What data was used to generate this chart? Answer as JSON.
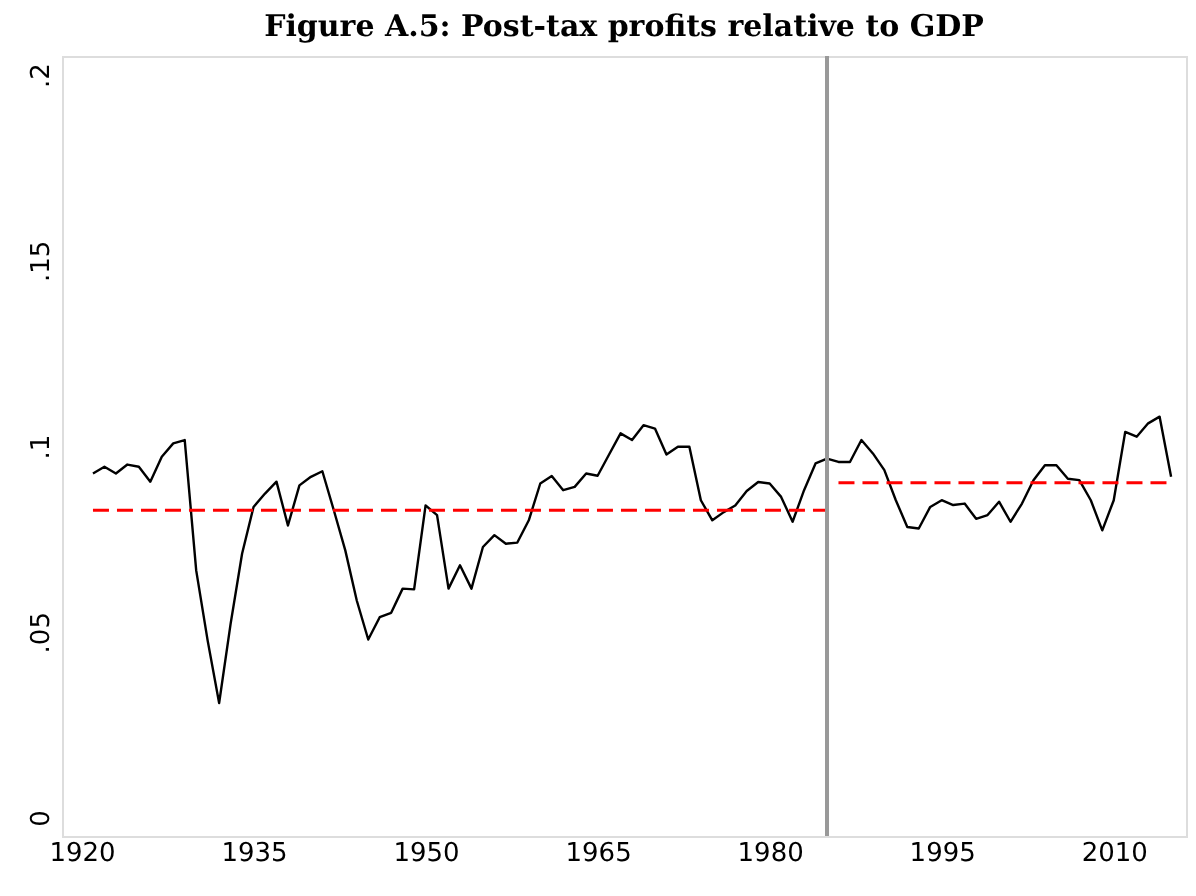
{
  "chart_data": {
    "type": "line",
    "title": "Figure A.5: Post-tax profits relative to GDP",
    "xlim": [
      1918.3,
      2016.3
    ],
    "ylim": [
      -0.005,
      0.205
    ],
    "xticks": [
      1920,
      1935,
      1950,
      1965,
      1980,
      1995,
      2010
    ],
    "yticks": [
      {
        "value": 0,
        "label": "0"
      },
      {
        "value": 0.05,
        "label": ".05"
      },
      {
        "value": 0.1,
        "label": ".1"
      },
      {
        "value": 0.15,
        "label": ".15"
      },
      {
        "value": 0.2,
        "label": ".2"
      }
    ],
    "grid": false,
    "marker": "none",
    "ref_lines": [
      {
        "axis": "x",
        "value": 1985,
        "color": "#999999"
      }
    ],
    "series": [
      {
        "color": "#000000",
        "line_style": "solid",
        "x": [
          1921,
          1922,
          1923,
          1924,
          1925,
          1926,
          1927,
          1928,
          1929,
          1930,
          1931,
          1932,
          1933,
          1934,
          1935,
          1936,
          1937,
          1938,
          1939,
          1940,
          1941,
          1942,
          1943,
          1944,
          1945,
          1946,
          1947,
          1948,
          1949,
          1950,
          1951,
          1952,
          1953,
          1954,
          1955,
          1956,
          1957,
          1958,
          1959,
          1960,
          1961,
          1962,
          1963,
          1964,
          1965,
          1966,
          1967,
          1968,
          1969,
          1970,
          1971,
          1972,
          1973,
          1974,
          1975,
          1976,
          1977,
          1978,
          1979,
          1980,
          1981,
          1982,
          1983,
          1984,
          1985,
          1986,
          1987,
          1988,
          1989,
          1990,
          1991,
          1992,
          1993,
          1994,
          1995,
          1996,
          1997,
          1998,
          1999,
          2000,
          2001,
          2002,
          2003,
          2004,
          2005,
          2006,
          2007,
          2008,
          2009,
          2010,
          2011,
          2012,
          2013,
          2014,
          2015
        ],
        "values": [
          0.0926,
          0.0944,
          0.0926,
          0.095,
          0.0944,
          0.0904,
          0.0971,
          0.1007,
          0.1016,
          0.0665,
          0.0476,
          0.0308,
          0.0521,
          0.071,
          0.0836,
          0.0872,
          0.0904,
          0.0786,
          0.0894,
          0.0917,
          0.0932,
          0.0827,
          0.0719,
          0.0584,
          0.0479,
          0.0539,
          0.0551,
          0.0616,
          0.0614,
          0.084,
          0.0814,
          0.0616,
          0.0679,
          0.0616,
          0.0728,
          0.076,
          0.0737,
          0.074,
          0.08,
          0.0899,
          0.0919,
          0.0881,
          0.089,
          0.0926,
          0.092,
          0.0977,
          0.1034,
          0.1016,
          0.1056,
          0.1047,
          0.0977,
          0.0998,
          0.0998,
          0.0854,
          0.08,
          0.0822,
          0.084,
          0.0879,
          0.0903,
          0.0899,
          0.0863,
          0.0796,
          0.0881,
          0.0953,
          0.0966,
          0.0957,
          0.0957,
          0.1016,
          0.098,
          0.0935,
          0.0854,
          0.0782,
          0.0778,
          0.0836,
          0.0854,
          0.0841,
          0.0845,
          0.0804,
          0.0814,
          0.085,
          0.0796,
          0.0845,
          0.0908,
          0.0948,
          0.0948,
          0.0912,
          0.0908,
          0.0854,
          0.0773,
          0.0854,
          0.1038,
          0.1025,
          0.1061,
          0.1079,
          0.0917
        ]
      },
      {
        "color": "#ff0000",
        "line_style": "dashed",
        "x": [
          1921,
          1985
        ],
        "values": [
          0.0827,
          0.0827
        ]
      },
      {
        "color": "#ff0000",
        "line_style": "dashed",
        "x": [
          1986,
          2015
        ],
        "values": [
          0.0901,
          0.0901
        ]
      }
    ]
  }
}
